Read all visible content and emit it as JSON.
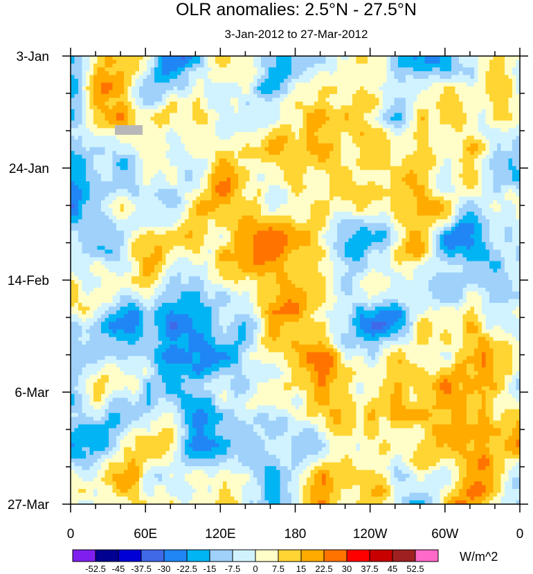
{
  "chart_data": {
    "type": "heatmap",
    "title": "OLR anomalies: 2.5°N - 27.5°N",
    "subtitle": "3-Jan-2012 to 27-Mar-2012",
    "x_ticks": [
      "0",
      "60E",
      "120E",
      "180",
      "120W",
      "60W",
      "0"
    ],
    "x_tick_longitudes": [
      0,
      60,
      120,
      180,
      240,
      300,
      360
    ],
    "x_range_longitude": [
      0,
      360
    ],
    "y_ticks": [
      "3-Jan",
      "24-Jan",
      "14-Feb",
      "6-Mar",
      "27-Mar"
    ],
    "y_tick_days": [
      0,
      21,
      42,
      63,
      84
    ],
    "y_range_days": [
      0,
      84
    ],
    "colorbar": {
      "units": "W/m^2",
      "levels": [
        "-52.5",
        "-45",
        "-37.5",
        "-30",
        "-22.5",
        "-15",
        "-7.5",
        "0",
        "7.5",
        "15",
        "22.5",
        "30",
        "37.5",
        "45",
        "52.5"
      ],
      "colors": [
        "#7f1fef",
        "#000091",
        "#0000d6",
        "#4069e8",
        "#2186f5",
        "#01b4f3",
        "#9fd1fb",
        "#d1f3ff",
        "#fffec9",
        "#ffd533",
        "#ffab00",
        "#ff7400",
        "#ff0000",
        "#c80000",
        "#9f2020",
        "#ff69c8"
      ]
    },
    "missing_color": "#b8b8b8"
  }
}
